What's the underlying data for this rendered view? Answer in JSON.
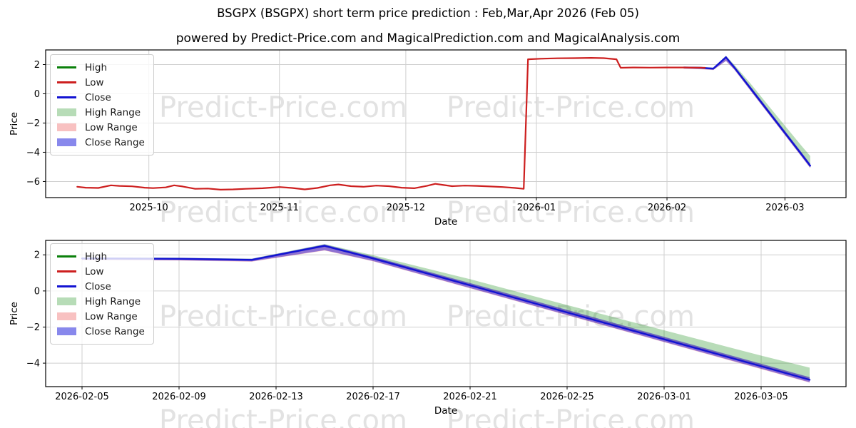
{
  "figure": {
    "title": "BSGPX (BSGPX) short term price prediction : Feb,Mar,Apr 2026 (Feb 05)",
    "subtitle": "powered by Predict-Price.com and MagicalPrediction.com and MagicalAnalysis.com",
    "watermark_text": "Predict-Price.com",
    "background": "#ffffff"
  },
  "colors": {
    "high_line": "#0b800b",
    "low_line": "#cd1f1f",
    "close_line": "#1313d2",
    "high_range_fill": "rgba(0,128,0,0.28)",
    "low_range_fill": "rgba(240,30,30,0.25)",
    "close_range_fill": "rgba(10,10,225,0.45)",
    "high_range_swatch": "#b7dcb7",
    "low_range_swatch": "#f8c1c1",
    "close_range_swatch": "#8888ec",
    "gridline": "#cfcfcf",
    "spine": "#000000",
    "tick_text": "#000000",
    "watermark": "rgba(160,160,160,0.30)"
  },
  "legend": {
    "entries": [
      {
        "label": "High",
        "type": "line",
        "color_key": "high_line"
      },
      {
        "label": "Low",
        "type": "line",
        "color_key": "low_line"
      },
      {
        "label": "Close",
        "type": "line",
        "color_key": "close_line"
      },
      {
        "label": "High Range",
        "type": "patch",
        "color_key": "high_range_swatch"
      },
      {
        "label": "Low Range",
        "type": "patch",
        "color_key": "low_range_swatch"
      },
      {
        "label": "Close Range",
        "type": "patch",
        "color_key": "close_range_swatch"
      }
    ],
    "position": "upper left"
  },
  "chart_data": [
    {
      "type": "line",
      "panel": "top",
      "xlabel": "Date",
      "ylabel": "Price",
      "grid": true,
      "xlim": [
        "2025-09-06T12:00:00Z",
        "2026-03-15T12:00:00Z"
      ],
      "ylim": [
        -7.1,
        3.0
      ],
      "yticks": [
        {
          "v": 2,
          "label": "2"
        },
        {
          "v": 0,
          "label": "0"
        },
        {
          "v": -2,
          "label": "−2"
        },
        {
          "v": -4,
          "label": "−4"
        },
        {
          "v": -6,
          "label": "−6"
        }
      ],
      "xticks": [
        {
          "date": "2025-10-01",
          "label": "2025-10"
        },
        {
          "date": "2025-11-01",
          "label": "2025-11"
        },
        {
          "date": "2025-12-01",
          "label": "2025-12"
        },
        {
          "date": "2026-01-01",
          "label": "2026-01"
        },
        {
          "date": "2026-02-01",
          "label": "2026-02"
        },
        {
          "date": "2026-03-01",
          "label": "2026-03"
        }
      ],
      "bands": [
        {
          "name": "High Range",
          "color_key": "high_range_fill",
          "points": [
            [
              "2026-02-05",
              1.86,
              1.78
            ],
            [
              "2026-02-09",
              1.84,
              1.76
            ],
            [
              "2026-02-12",
              1.79,
              1.7
            ],
            [
              "2026-02-15",
              2.6,
              2.44
            ],
            [
              "2026-02-17",
              1.98,
              1.78
            ],
            [
              "2026-02-21",
              0.65,
              0.3
            ],
            [
              "2026-02-25",
              -0.78,
              -1.2
            ],
            [
              "2026-03-01",
              -2.18,
              -2.69
            ],
            [
              "2026-03-05",
              -3.58,
              -4.18
            ],
            [
              "2026-03-07",
              -4.25,
              -4.93
            ]
          ]
        },
        {
          "name": "Low Range",
          "color_key": "low_range_fill",
          "points": [
            [
              "2026-02-05",
              1.83,
              1.71
            ],
            [
              "2026-02-09",
              1.81,
              1.68
            ],
            [
              "2026-02-12",
              1.76,
              1.62
            ],
            [
              "2026-02-15",
              2.56,
              2.24
            ],
            [
              "2026-02-17",
              1.88,
              1.64
            ],
            [
              "2026-02-21",
              0.42,
              0.14
            ],
            [
              "2026-02-25",
              -1.07,
              -1.35
            ],
            [
              "2026-03-01",
              -2.56,
              -2.84
            ],
            [
              "2026-03-05",
              -4.05,
              -4.33
            ],
            [
              "2026-03-07",
              -4.8,
              -5.08
            ]
          ]
        },
        {
          "name": "Close Range",
          "color_key": "close_range_fill",
          "points": [
            [
              "2026-02-05",
              1.85,
              1.73
            ],
            [
              "2026-02-09",
              1.83,
              1.7
            ],
            [
              "2026-02-12",
              1.78,
              1.64
            ],
            [
              "2026-02-15",
              2.58,
              2.26
            ],
            [
              "2026-02-17",
              1.9,
              1.66
            ],
            [
              "2026-02-21",
              0.44,
              0.16
            ],
            [
              "2026-02-25",
              -1.05,
              -1.33
            ],
            [
              "2026-03-01",
              -2.54,
              -2.82
            ],
            [
              "2026-03-05",
              -4.03,
              -4.31
            ],
            [
              "2026-03-07",
              -4.78,
              -5.06
            ]
          ]
        }
      ],
      "series": [
        {
          "name": "Close (forecast)",
          "color_key": "close_line",
          "width": 2.4,
          "points": [
            [
              "2026-02-05",
              1.8
            ],
            [
              "2026-02-09",
              1.78
            ],
            [
              "2026-02-12",
              1.72
            ],
            [
              "2026-02-15",
              2.5
            ],
            [
              "2026-02-17",
              1.8
            ],
            [
              "2026-02-21",
              0.31
            ],
            [
              "2026-02-25",
              -1.19
            ],
            [
              "2026-03-01",
              -2.68
            ],
            [
              "2026-03-05",
              -4.17
            ],
            [
              "2026-03-07",
              -4.92
            ]
          ]
        },
        {
          "name": "Low (history)",
          "color_key": "low_line",
          "width": 2.2,
          "points": [
            [
              "2025-09-14",
              -6.36
            ],
            [
              "2025-09-16",
              -6.42
            ],
            [
              "2025-09-19",
              -6.44
            ],
            [
              "2025-09-22",
              -6.26
            ],
            [
              "2025-09-24",
              -6.3
            ],
            [
              "2025-09-27",
              -6.33
            ],
            [
              "2025-09-30",
              -6.42
            ],
            [
              "2025-10-02",
              -6.45
            ],
            [
              "2025-10-05",
              -6.4
            ],
            [
              "2025-10-07",
              -6.26
            ],
            [
              "2025-10-09",
              -6.34
            ],
            [
              "2025-10-12",
              -6.5
            ],
            [
              "2025-10-15",
              -6.48
            ],
            [
              "2025-10-18",
              -6.56
            ],
            [
              "2025-10-21",
              -6.54
            ],
            [
              "2025-10-24",
              -6.5
            ],
            [
              "2025-10-28",
              -6.46
            ],
            [
              "2025-11-01",
              -6.38
            ],
            [
              "2025-11-04",
              -6.44
            ],
            [
              "2025-11-07",
              -6.54
            ],
            [
              "2025-11-10",
              -6.44
            ],
            [
              "2025-11-13",
              -6.26
            ],
            [
              "2025-11-15",
              -6.2
            ],
            [
              "2025-11-18",
              -6.32
            ],
            [
              "2025-11-21",
              -6.36
            ],
            [
              "2025-11-24",
              -6.28
            ],
            [
              "2025-11-27",
              -6.32
            ],
            [
              "2025-11-30",
              -6.42
            ],
            [
              "2025-12-03",
              -6.46
            ],
            [
              "2025-12-06",
              -6.3
            ],
            [
              "2025-12-08",
              -6.16
            ],
            [
              "2025-12-10",
              -6.24
            ],
            [
              "2025-12-12",
              -6.32
            ],
            [
              "2025-12-15",
              -6.28
            ],
            [
              "2025-12-18",
              -6.3
            ],
            [
              "2025-12-21",
              -6.34
            ],
            [
              "2025-12-24",
              -6.38
            ],
            [
              "2025-12-27",
              -6.44
            ],
            [
              "2025-12-29",
              -6.5
            ],
            [
              "2025-12-30",
              2.36
            ],
            [
              "2026-01-02",
              2.4
            ],
            [
              "2026-01-06",
              2.43
            ],
            [
              "2026-01-10",
              2.44
            ],
            [
              "2026-01-14",
              2.46
            ],
            [
              "2026-01-17",
              2.44
            ],
            [
              "2026-01-20",
              2.36
            ],
            [
              "2026-01-21",
              1.78
            ],
            [
              "2026-01-24",
              1.8
            ],
            [
              "2026-01-28",
              1.79
            ],
            [
              "2026-02-01",
              1.8
            ],
            [
              "2026-02-05",
              1.8
            ],
            [
              "2026-02-10",
              1.78
            ]
          ]
        }
      ]
    },
    {
      "type": "line",
      "panel": "bottom",
      "xlabel": "Date",
      "ylabel": "Price",
      "grid": true,
      "xlim": [
        "2026-02-03T12:00:00Z",
        "2026-03-08T12:00:00Z"
      ],
      "ylim": [
        -5.3,
        2.8
      ],
      "yticks": [
        {
          "v": 2,
          "label": "2"
        },
        {
          "v": 0,
          "label": "0"
        },
        {
          "v": -2,
          "label": "−2"
        },
        {
          "v": -4,
          "label": "−4"
        }
      ],
      "xticks": [
        {
          "date": "2026-02-05",
          "label": "2026-02-05"
        },
        {
          "date": "2026-02-09",
          "label": "2026-02-09"
        },
        {
          "date": "2026-02-13",
          "label": "2026-02-13"
        },
        {
          "date": "2026-02-17",
          "label": "2026-02-17"
        },
        {
          "date": "2026-02-21",
          "label": "2026-02-21"
        },
        {
          "date": "2026-02-25",
          "label": "2026-02-25"
        },
        {
          "date": "2026-03-01",
          "label": "2026-03-01"
        },
        {
          "date": "2026-03-05",
          "label": "2026-03-05"
        }
      ],
      "bands": [
        {
          "name": "High Range",
          "color_key": "high_range_fill",
          "points": [
            [
              "2026-02-05",
              1.86,
              1.78
            ],
            [
              "2026-02-09",
              1.84,
              1.76
            ],
            [
              "2026-02-12",
              1.79,
              1.7
            ],
            [
              "2026-02-15",
              2.6,
              2.44
            ],
            [
              "2026-02-17",
              1.98,
              1.78
            ],
            [
              "2026-02-21",
              0.65,
              0.3
            ],
            [
              "2026-02-25",
              -0.78,
              -1.2
            ],
            [
              "2026-03-01",
              -2.18,
              -2.69
            ],
            [
              "2026-03-05",
              -3.58,
              -4.18
            ],
            [
              "2026-03-07",
              -4.25,
              -4.93
            ]
          ]
        },
        {
          "name": "Low Range",
          "color_key": "low_range_fill",
          "points": [
            [
              "2026-02-05",
              1.83,
              1.71
            ],
            [
              "2026-02-09",
              1.81,
              1.68
            ],
            [
              "2026-02-12",
              1.76,
              1.62
            ],
            [
              "2026-02-15",
              2.56,
              2.24
            ],
            [
              "2026-02-17",
              1.88,
              1.64
            ],
            [
              "2026-02-21",
              0.42,
              0.14
            ],
            [
              "2026-02-25",
              -1.07,
              -1.35
            ],
            [
              "2026-03-01",
              -2.56,
              -2.84
            ],
            [
              "2026-03-05",
              -4.05,
              -4.33
            ],
            [
              "2026-03-07",
              -4.8,
              -5.08
            ]
          ]
        },
        {
          "name": "Close Range",
          "color_key": "close_range_fill",
          "points": [
            [
              "2026-02-05",
              1.85,
              1.73
            ],
            [
              "2026-02-09",
              1.83,
              1.7
            ],
            [
              "2026-02-12",
              1.78,
              1.64
            ],
            [
              "2026-02-15",
              2.58,
              2.26
            ],
            [
              "2026-02-17",
              1.9,
              1.66
            ],
            [
              "2026-02-21",
              0.44,
              0.16
            ],
            [
              "2026-02-25",
              -1.05,
              -1.33
            ],
            [
              "2026-03-01",
              -2.54,
              -2.82
            ],
            [
              "2026-03-05",
              -4.03,
              -4.31
            ],
            [
              "2026-03-07",
              -4.78,
              -5.06
            ]
          ]
        }
      ],
      "series": [
        {
          "name": "Close (forecast)",
          "color_key": "close_line",
          "width": 2.4,
          "points": [
            [
              "2026-02-05",
              1.8
            ],
            [
              "2026-02-09",
              1.78
            ],
            [
              "2026-02-12",
              1.72
            ],
            [
              "2026-02-15",
              2.5
            ],
            [
              "2026-02-17",
              1.8
            ],
            [
              "2026-02-21",
              0.31
            ],
            [
              "2026-02-25",
              -1.19
            ],
            [
              "2026-03-01",
              -2.68
            ],
            [
              "2026-03-05",
              -4.17
            ],
            [
              "2026-03-07",
              -4.92
            ]
          ]
        }
      ]
    }
  ]
}
